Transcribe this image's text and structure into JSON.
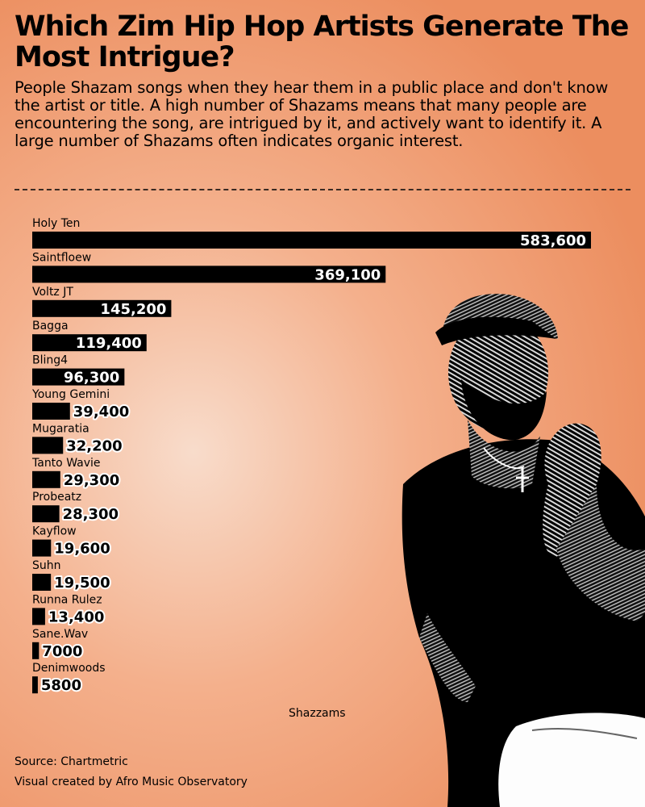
{
  "header": {
    "title": "Which Zim Hip Hop Artists Generate The Most Intrigue?",
    "subtitle": "People Shazam songs when they hear them in a public place and don't know the artist or title. A high number of Shazams means that many people are encountering the song, are intrigued by it, and actively want to identify it. A large number of Shazams often indicates organic interest."
  },
  "chart_data": {
    "type": "bar",
    "orientation": "horizontal",
    "title": "Which Zim Hip Hop Artists Generate The Most Intrigue?",
    "xlabel": "Shazzams",
    "ylabel": "",
    "categories": [
      "Holy Ten",
      "Saintfloew",
      "Voltz JT",
      "Bagga",
      "Bling4",
      "Young Gemini",
      "Mugaratia",
      "Tanto Wavie",
      "Probeatz",
      "Kayflow",
      "Suhn",
      "Runna Rulez",
      "Sane.Wav",
      "Denimwoods"
    ],
    "values": [
      583600,
      369100,
      145200,
      119400,
      96300,
      39400,
      32200,
      29300,
      28300,
      19600,
      19500,
      13400,
      7000,
      5800
    ],
    "value_labels": [
      "583,600",
      "369,100",
      "145,200",
      "119,400",
      "96,300",
      "39,400",
      "32,200",
      "29,300",
      "28,300",
      "19,600",
      "19,500",
      "13,400",
      "7000",
      "5800"
    ],
    "xlim": [
      0,
      583600
    ],
    "grid": false,
    "bar_color": "#000000"
  },
  "footer": {
    "source": "Source: Chartmetric",
    "credit": "Visual created by Afro Music Observatory"
  },
  "colors": {
    "background_light": "#f8dccb",
    "background_dark": "#ec8e5f",
    "bar": "#000000",
    "label_outline": "#ffffff"
  },
  "image": {
    "icon": "artist-photo-icon"
  }
}
